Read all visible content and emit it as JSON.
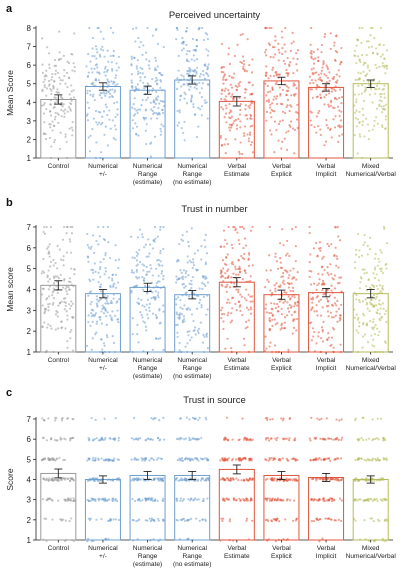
{
  "chart_data": [
    {
      "panel": "a",
      "type": "bar",
      "title": "Perceived uncertainty",
      "ylabel": "Mean Score",
      "ylim": [
        1,
        8
      ],
      "yticks": [
        1,
        2,
        3,
        4,
        5,
        6,
        7,
        8
      ],
      "categories": [
        "Control",
        "Numerical +/-",
        "Numerical Range (estimate)",
        "Numerical Range (no estimate)",
        "Verbal Estimate",
        "Verbal Explicit",
        "Verbal Implicit",
        "Mixed Numerical/Verbal"
      ],
      "values": [
        4.15,
        4.85,
        4.65,
        5.2,
        4.05,
        5.15,
        4.8,
        5.0
      ],
      "error": [
        0.25,
        0.2,
        0.22,
        0.22,
        0.25,
        0.2,
        0.2,
        0.2
      ],
      "discrete": false,
      "colors": [
        "#9a9a9a",
        "#6f9fcf",
        "#6f9fcf",
        "#6f9fcf",
        "#e0553d",
        "#e0553d",
        "#e0553d",
        "#b5bb57"
      ]
    },
    {
      "panel": "b",
      "type": "bar",
      "title": "Trust in number",
      "ylabel": "Mean score",
      "ylim": [
        1,
        7
      ],
      "yticks": [
        1,
        2,
        3,
        4,
        5,
        6,
        7
      ],
      "categories": [
        "Control",
        "Numerical +/-",
        "Numerical Range (estimate)",
        "Numerical Range (no estimate)",
        "Verbal Estimate",
        "Verbal Explicit",
        "Verbal Implicit",
        "Mixed Numerical/Verbal"
      ],
      "values": [
        4.2,
        3.8,
        4.1,
        3.75,
        4.35,
        3.75,
        3.85,
        3.8
      ],
      "error": [
        0.22,
        0.2,
        0.2,
        0.2,
        0.22,
        0.22,
        0.2,
        0.2
      ],
      "discrete": false,
      "colors": [
        "#9a9a9a",
        "#6f9fcf",
        "#6f9fcf",
        "#6f9fcf",
        "#e0553d",
        "#e0553d",
        "#e0553d",
        "#b5bb57"
      ]
    },
    {
      "panel": "c",
      "type": "bar",
      "title": "Trust in source",
      "ylabel": "Score",
      "ylim": [
        1,
        7
      ],
      "yticks": [
        1,
        2,
        3,
        4,
        5,
        6,
        7
      ],
      "categories": [
        "Control",
        "Numerical +/-",
        "Numerical Range (estimate)",
        "Numerical Range (no estimate)",
        "Verbal Estimate",
        "Verbal Explicit",
        "Verbal Implicit",
        "Mixed Numerical/Verbal"
      ],
      "values": [
        4.3,
        4.0,
        4.2,
        4.2,
        4.5,
        4.2,
        4.1,
        4.0
      ],
      "error": [
        0.22,
        0.18,
        0.2,
        0.2,
        0.22,
        0.2,
        0.2,
        0.18
      ],
      "discrete": true,
      "colors": [
        "#9a9a9a",
        "#6f9fcf",
        "#6f9fcf",
        "#6f9fcf",
        "#e0553d",
        "#e0553d",
        "#e0553d",
        "#b5bb57"
      ]
    }
  ]
}
